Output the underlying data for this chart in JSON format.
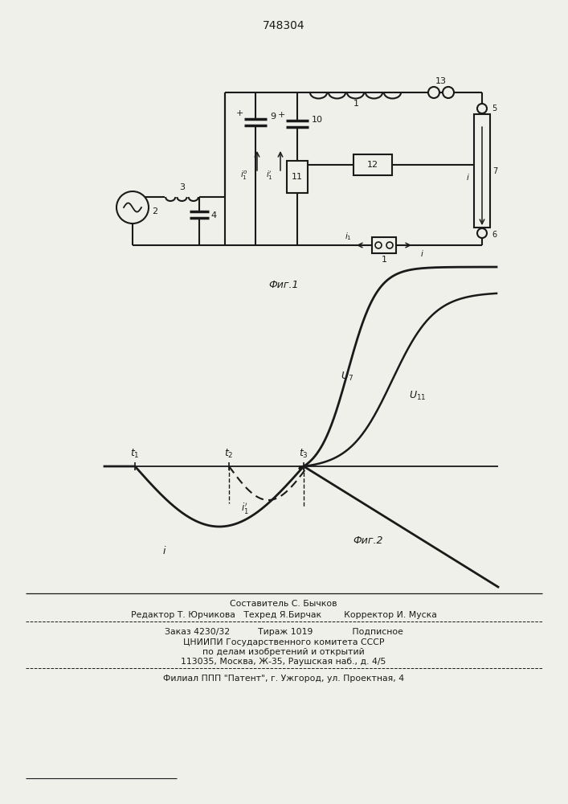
{
  "title": "748304",
  "bg_color": "#f0f0ea",
  "line_color": "#1a1a1a",
  "footer": [
    "Составитель С. Бычков",
    "Редактор Т. Юрчикова   Техред Я.Бирчак        Корректор И. Муска",
    "Заказ 4230/32          Тираж 1019              Подписное",
    "ЦНИИПИ Государственного комитета СССР",
    "по делам изобретений и открытий",
    "113035, Москва, Ж-35, Раушская наб., д. 4/5",
    "Филиал ППП \"Патент\", г. Ужгород, ул. Проектная, 4"
  ]
}
